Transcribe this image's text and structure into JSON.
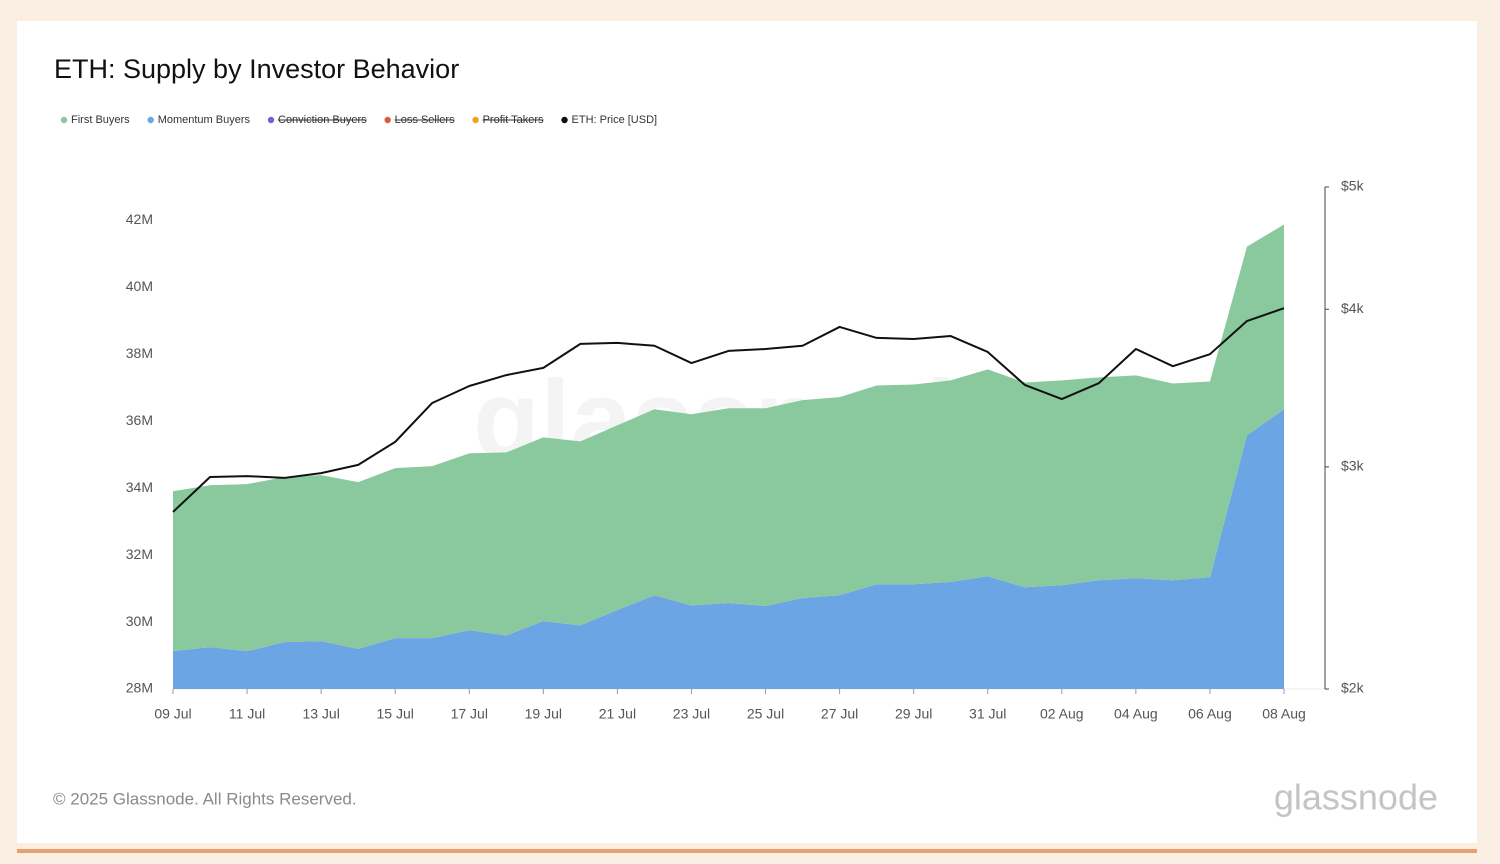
{
  "chart_data": {
    "type": "stacked_area",
    "title": "ETH: Supply by Investor Behavior",
    "watermark": "glassnode",
    "categories": [
      "09 Jul",
      null,
      "11 Jul",
      null,
      "13 Jul",
      null,
      "15 Jul",
      null,
      "17 Jul",
      null,
      "19 Jul",
      null,
      "21 Jul",
      null,
      "23 Jul",
      null,
      "25 Jul",
      null,
      "27 Jul",
      null,
      "29 Jul",
      null,
      "31 Jul",
      null,
      "02 Aug",
      null,
      "04 Aug",
      null,
      "06 Aug",
      null,
      "08 Aug"
    ],
    "series": [
      {
        "name": "First Buyers",
        "color": "#8ac99e",
        "kind": "area",
        "values": [
          4780000,
          4840000,
          4990000,
          4930000,
          4960000,
          4980000,
          5080000,
          5140000,
          5280000,
          5470000,
          5490000,
          5500000,
          5520000,
          5560000,
          5710000,
          5820000,
          5910000,
          5910000,
          5920000,
          5940000,
          5970000,
          6020000,
          6180000,
          6120000,
          6120000,
          6060000,
          6060000,
          5880000,
          5850000,
          5640000,
          5520000
        ]
      },
      {
        "name": "Momentum Buyers",
        "color": "#6ba5e3",
        "kind": "area",
        "values": [
          29130000,
          29250000,
          29130000,
          29400000,
          29430000,
          29200000,
          29520000,
          29520000,
          29760000,
          29600000,
          30030000,
          29900000,
          30360000,
          30800000,
          30500000,
          30570000,
          30480000,
          30720000,
          30800000,
          31130000,
          31130000,
          31200000,
          31370000,
          31040000,
          31100000,
          31250000,
          31310000,
          31250000,
          31340000,
          35580000,
          36360000
        ]
      },
      {
        "name": "ETH: Price [USD]",
        "color": "#111111",
        "kind": "line",
        "axis": "y2",
        "values": [
          2763,
          2945,
          2950,
          2940,
          2966,
          3011,
          3140,
          3371,
          3477,
          3547,
          3594,
          3755,
          3762,
          3742,
          3626,
          3707,
          3720,
          3742,
          3873,
          3796,
          3789,
          3809,
          3700,
          3484,
          3395,
          3495,
          3720,
          3605,
          3685,
          3915,
          4008
        ]
      }
    ],
    "hidden_series": [
      {
        "name": "Conviction Buyers",
        "color": "#7b5cd6"
      },
      {
        "name": "Loss Sellers",
        "color": "#e0593c"
      },
      {
        "name": "Profit Takers",
        "color": "#f0a21b"
      }
    ],
    "legend_order": [
      "First Buyers",
      "Momentum Buyers",
      "Conviction Buyers",
      "Loss Sellers",
      "Profit Takers",
      "ETH: Price [USD]"
    ],
    "ylim": [
      28000000,
      43000000
    ],
    "yticks": [
      {
        "value": 28000000,
        "label": "28M"
      },
      {
        "value": 30000000,
        "label": "30M"
      },
      {
        "value": 32000000,
        "label": "32M"
      },
      {
        "value": 34000000,
        "label": "34M"
      },
      {
        "value": 36000000,
        "label": "36M"
      },
      {
        "value": 38000000,
        "label": "38M"
      },
      {
        "value": 40000000,
        "label": "40M"
      },
      {
        "value": 42000000,
        "label": "42M"
      }
    ],
    "y2lim": [
      2000,
      5000
    ],
    "y2scale": "log",
    "y2ticks": [
      {
        "value": 2000,
        "label": "$2k"
      },
      {
        "value": 3000,
        "label": "$3k"
      },
      {
        "value": 4000,
        "label": "$4k"
      },
      {
        "value": 5000,
        "label": "$5k"
      }
    ],
    "grid": false
  },
  "copyright": "© 2025 Glassnode. All Rights Reserved.",
  "logo": "glassnode"
}
